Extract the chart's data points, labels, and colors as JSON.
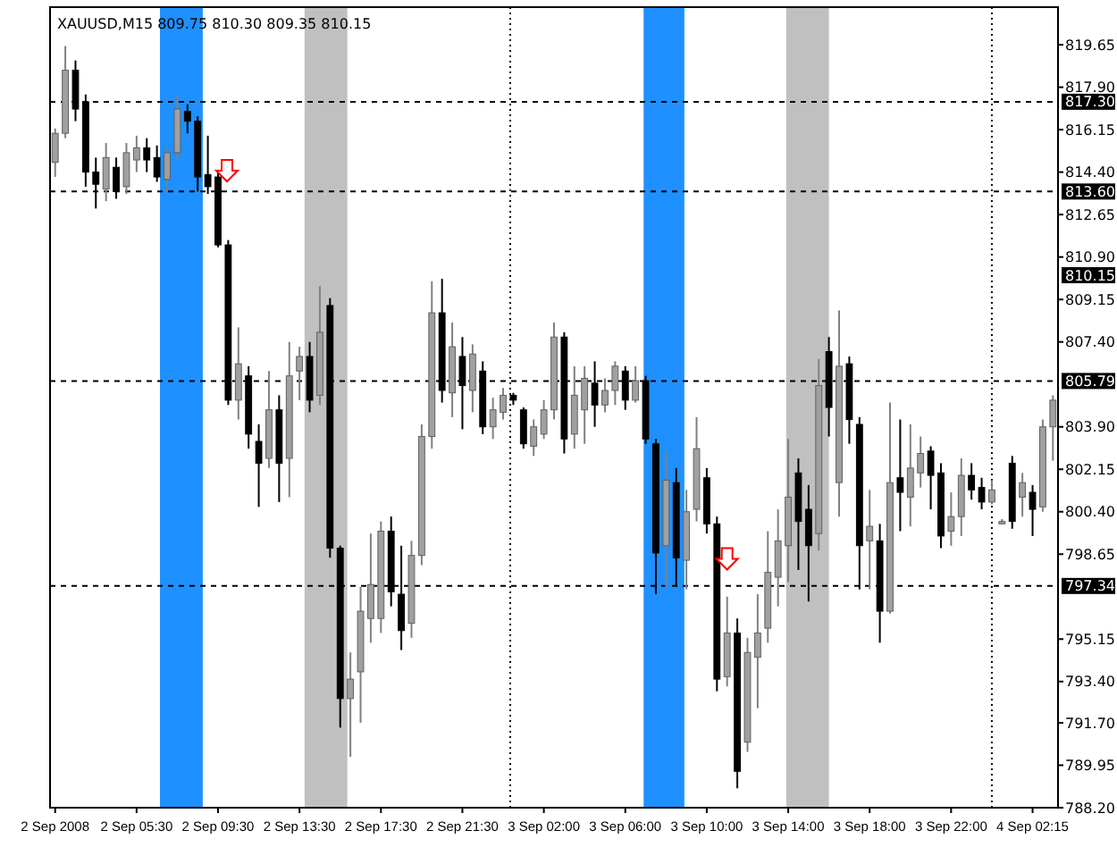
{
  "chart_data": {
    "type": "candlestick",
    "title": "XAUUSD,M15  809.75 810.30 809.35 810.15",
    "categories": [
      "2 Sep 2008",
      null,
      null,
      null,
      null,
      null,
      null,
      null,
      "2 Sep 05:30",
      null,
      null,
      null,
      null,
      null,
      null,
      null,
      "2 Sep 09:30",
      null,
      null,
      null,
      null,
      null,
      null,
      null,
      "2 Sep 13:30",
      null,
      null,
      null,
      null,
      null,
      null,
      null,
      "2 Sep 17:30",
      null,
      null,
      null,
      null,
      null,
      null,
      null,
      "2 Sep 21:30",
      null,
      null,
      null,
      null,
      null,
      null,
      null,
      "3 Sep 02:00",
      null,
      null,
      null,
      null,
      null,
      null,
      null,
      "3 Sep 06:00",
      null,
      null,
      null,
      null,
      null,
      null,
      null,
      "3 Sep 10:00",
      null,
      null,
      null,
      null,
      null,
      null,
      null,
      "3 Sep 14:00",
      null,
      null,
      null,
      null,
      null,
      null,
      null,
      "3 Sep 18:00",
      null,
      null,
      null,
      null,
      null,
      null,
      null,
      "3 Sep 22:00",
      null,
      null,
      null,
      null,
      null,
      null,
      null,
      "4 Sep 02:15",
      null,
      null
    ],
    "ohlc": [
      [
        814.8,
        816.2,
        814.2,
        816.0
      ],
      [
        816.0,
        819.6,
        815.8,
        818.6
      ],
      [
        818.6,
        819.0,
        816.5,
        817.0
      ],
      [
        817.3,
        817.6,
        813.8,
        814.4
      ],
      [
        814.4,
        815.0,
        812.9,
        813.9
      ],
      [
        813.7,
        815.6,
        813.2,
        815.0
      ],
      [
        814.6,
        815.0,
        813.3,
        813.6
      ],
      [
        813.8,
        815.6,
        813.5,
        815.2
      ],
      [
        814.9,
        815.9,
        814.4,
        815.4
      ],
      [
        815.4,
        815.8,
        814.4,
        814.9
      ],
      [
        815.0,
        815.5,
        814.0,
        814.2
      ],
      [
        814.1,
        815.4,
        813.6,
        815.2
      ],
      [
        815.2,
        817.6,
        814.9,
        817.0
      ],
      [
        816.9,
        817.2,
        816.0,
        816.5
      ],
      [
        816.5,
        816.7,
        813.6,
        814.2
      ],
      [
        814.3,
        815.9,
        813.5,
        813.8
      ],
      [
        814.2,
        814.4,
        811.3,
        811.4
      ],
      [
        811.4,
        811.6,
        804.8,
        805.0
      ],
      [
        805.0,
        808.0,
        804.2,
        806.5
      ],
      [
        806.0,
        806.4,
        803.0,
        803.6
      ],
      [
        803.3,
        804.0,
        800.6,
        802.4
      ],
      [
        802.6,
        806.2,
        802.2,
        804.6
      ],
      [
        804.6,
        805.2,
        800.8,
        802.4
      ],
      [
        802.6,
        807.4,
        801.0,
        806.0
      ],
      [
        806.2,
        807.2,
        805.0,
        806.8
      ],
      [
        806.8,
        807.4,
        804.5,
        805.0
      ],
      [
        805.2,
        809.7,
        804.8,
        807.8
      ],
      [
        808.9,
        809.2,
        798.5,
        798.9
      ],
      [
        798.9,
        799.0,
        791.5,
        792.7
      ],
      [
        792.7,
        794.6,
        790.3,
        793.5
      ],
      [
        793.8,
        797.3,
        791.7,
        796.3
      ],
      [
        796.0,
        799.5,
        795.0,
        797.4
      ],
      [
        796.0,
        800.0,
        795.4,
        799.6
      ],
      [
        799.6,
        800.2,
        796.5,
        797.1
      ],
      [
        797.0,
        799.0,
        794.7,
        795.5
      ],
      [
        795.8,
        799.2,
        795.2,
        798.6
      ],
      [
        798.6,
        804.0,
        798.2,
        803.5
      ],
      [
        803.5,
        809.9,
        803.0,
        808.6
      ],
      [
        808.6,
        810.0,
        804.9,
        805.4
      ],
      [
        805.3,
        808.2,
        804.3,
        807.2
      ],
      [
        806.8,
        807.6,
        803.8,
        805.6
      ],
      [
        805.4,
        807.3,
        804.5,
        806.9
      ],
      [
        806.2,
        806.6,
        803.6,
        803.9
      ],
      [
        803.9,
        805.1,
        803.4,
        804.6
      ],
      [
        804.5,
        805.5,
        804.2,
        805.2
      ],
      [
        805.2,
        805.3,
        804.8,
        805.0
      ],
      [
        804.6,
        804.7,
        803.0,
        803.2
      ],
      [
        803.1,
        804.2,
        802.7,
        803.9
      ],
      [
        803.6,
        805.0,
        803.4,
        804.6
      ],
      [
        804.6,
        808.2,
        804.2,
        807.6
      ],
      [
        807.6,
        807.8,
        802.8,
        803.4
      ],
      [
        803.6,
        806.4,
        803.0,
        805.2
      ],
      [
        804.6,
        806.4,
        803.2,
        805.9
      ],
      [
        805.7,
        806.6,
        803.9,
        804.8
      ],
      [
        804.8,
        805.9,
        804.5,
        805.4
      ],
      [
        805.4,
        806.6,
        804.8,
        806.4
      ],
      [
        806.2,
        806.4,
        804.6,
        805.0
      ],
      [
        805.0,
        806.4,
        804.9,
        805.8
      ],
      [
        805.8,
        806.0,
        803.2,
        803.4
      ],
      [
        803.2,
        803.4,
        797.0,
        798.7
      ],
      [
        799.0,
        802.9,
        797.3,
        801.7
      ],
      [
        801.6,
        802.2,
        797.3,
        798.5
      ],
      [
        798.4,
        801.3,
        797.2,
        800.4
      ],
      [
        800.5,
        804.3,
        800.0,
        803.0
      ],
      [
        801.8,
        802.2,
        799.5,
        799.9
      ],
      [
        799.9,
        800.2,
        793.0,
        793.5
      ],
      [
        793.6,
        796.9,
        793.2,
        795.4
      ],
      [
        795.4,
        796.0,
        789.0,
        789.7
      ],
      [
        790.9,
        795.2,
        790.5,
        794.6
      ],
      [
        794.4,
        797.0,
        792.3,
        795.4
      ],
      [
        795.6,
        799.6,
        795.0,
        797.9
      ],
      [
        797.7,
        800.5,
        796.5,
        799.2
      ],
      [
        799.0,
        803.4,
        797.5,
        801.0
      ],
      [
        802.0,
        802.6,
        798.0,
        800.0
      ],
      [
        800.5,
        801.5,
        796.7,
        799.0
      ],
      [
        799.5,
        806.7,
        798.8,
        805.6
      ],
      [
        807.0,
        807.6,
        803.5,
        804.7
      ],
      [
        801.6,
        808.7,
        800.2,
        806.4
      ],
      [
        806.5,
        806.8,
        803.2,
        804.2
      ],
      [
        804.0,
        804.3,
        797.2,
        799.0
      ],
      [
        799.2,
        801.3,
        797.2,
        799.8
      ],
      [
        799.2,
        799.9,
        795.0,
        796.3
      ],
      [
        796.3,
        804.9,
        796.2,
        801.6
      ],
      [
        801.8,
        804.2,
        799.6,
        801.2
      ],
      [
        801.0,
        804.0,
        799.8,
        802.2
      ],
      [
        802.0,
        803.5,
        801.4,
        802.8
      ],
      [
        802.9,
        803.1,
        800.5,
        801.9
      ],
      [
        802.0,
        802.4,
        798.9,
        799.4
      ],
      [
        799.6,
        801.2,
        799.0,
        800.2
      ],
      [
        800.2,
        802.6,
        799.4,
        801.9
      ],
      [
        801.9,
        802.4,
        800.9,
        801.3
      ],
      [
        801.4,
        801.8,
        800.5,
        800.8
      ],
      [
        800.8,
        801.7,
        800.7,
        801.3
      ],
      [
        799.9,
        800.1,
        799.9,
        800.0
      ],
      [
        802.4,
        802.7,
        799.7,
        800.0
      ],
      [
        801.0,
        802.0,
        800.2,
        801.6
      ],
      [
        801.2,
        801.5,
        799.4,
        800.5
      ],
      [
        800.6,
        804.2,
        800.4,
        803.9
      ],
      [
        803.9,
        805.2,
        802.5,
        805.0
      ]
    ],
    "ylim": [
      788.2,
      821.2
    ],
    "yticks": [
      819.65,
      {
        "value": 817.9,
        "label": "817.90"
      },
      816.15,
      {
        "value": 814.4,
        "label": "814.40"
      },
      812.65,
      {
        "value": 810.9,
        "label": "810.90"
      },
      809.15,
      {
        "value": 807.4,
        "label": "807.40"
      },
      {
        "value": 803.9,
        "label": "803.90"
      },
      802.15,
      {
        "value": 800.4,
        "label": "800.40"
      },
      798.65,
      795.15,
      {
        "value": 793.4,
        "label": "793.40"
      },
      {
        "value": 791.7,
        "label": "791.70"
      },
      789.95,
      {
        "value": 788.2,
        "label": "788.20"
      }
    ],
    "ref_lines": [
      {
        "axis": "y",
        "value": 817.3,
        "label": "817.30",
        "line_style": "dashed",
        "color": "#000000"
      },
      {
        "axis": "y",
        "value": 813.6,
        "label": "813.60",
        "line_style": "dashed",
        "color": "#000000"
      },
      {
        "axis": "y",
        "value": 805.79,
        "label": "805.79",
        "line_style": "dashed",
        "color": "#000000"
      },
      {
        "axis": "y",
        "value": 797.34,
        "label": "797.34",
        "line_style": "dashed",
        "color": "#000000"
      }
    ],
    "annotations": [
      {
        "text": "810.15",
        "y": 810.15
      }
    ]
  }
}
